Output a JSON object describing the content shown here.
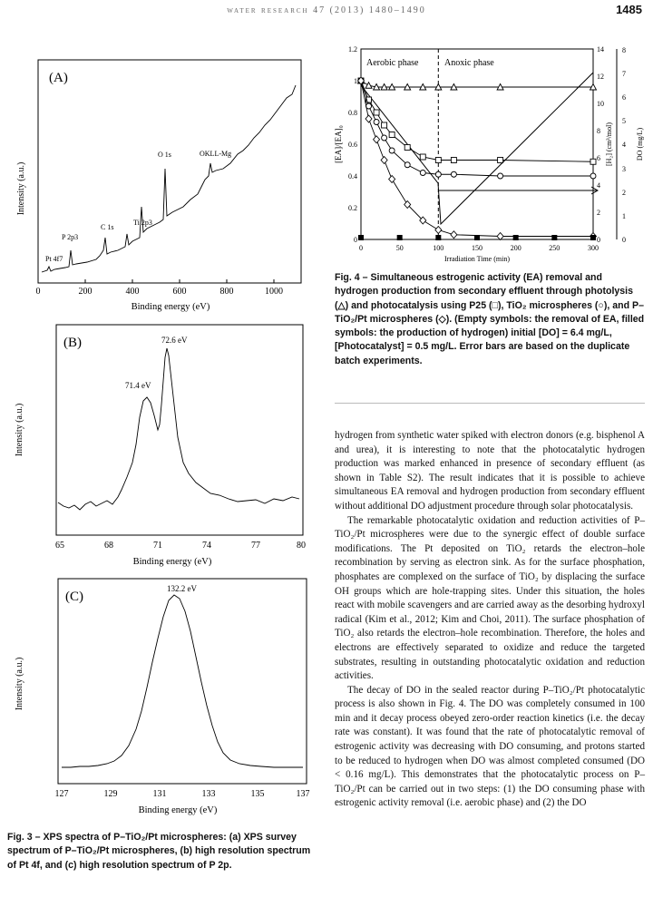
{
  "header": {
    "journal": "water research 47 (2013) 1480–1490",
    "page": "1485"
  },
  "figure3": {
    "panelA": {
      "label": "(A)",
      "xlabel": "Binding energy (eV)",
      "ylabel": "Intensity (a.u.)",
      "ticks": [
        "0",
        "200",
        "400",
        "600",
        "800",
        "1000"
      ],
      "peaks": [
        "Pt 4f7",
        "P 2p3",
        "C 1s",
        "Ti 2p3",
        "O 1s",
        "OKLL-Mg"
      ]
    },
    "panelB": {
      "label": "(B)",
      "xlabel": "Binding energy (eV)",
      "ylabel": "Intensity (a.u.)",
      "ticks": [
        "65",
        "68",
        "71",
        "74",
        "77",
        "80"
      ],
      "peak1": "71.4 eV",
      "peak2": "72.6 eV"
    },
    "panelC": {
      "label": "(C)",
      "xlabel": "Binding energy (eV)",
      "ylabel": "Intensity (a.u.)",
      "ticks": [
        "127",
        "129",
        "131",
        "133",
        "135",
        "137"
      ],
      "peak": "132.2 eV"
    },
    "caption": "Fig. 3 – XPS spectra of P–TiO₂/Pt microspheres: (a) XPS survey spectrum of P–TiO₂/Pt microspheres, (b) high resolution spectrum of Pt 4f, and (c) high resolution spectrum of P 2p."
  },
  "figure4": {
    "aerobic": "Aerobic phase",
    "anoxic": "Anoxic phase",
    "xlabel": "Irradiation Time (min)",
    "ylabel_left": "[EA]/[EA]₀",
    "ylabel_mid": "[H₂] (cm³/mol)",
    "ylabel_right": "DO (mg/L)",
    "xticks": [
      "0",
      "50",
      "100",
      "150",
      "200",
      "250",
      "300"
    ],
    "yticks_left": [
      "0",
      "0.2",
      "0.4",
      "0.6",
      "0.8",
      "1",
      "1.2"
    ],
    "yticks_mid": [
      "0",
      "2",
      "4",
      "6",
      "8",
      "10",
      "12",
      "14"
    ],
    "yticks_right": [
      "0",
      "1",
      "2",
      "3",
      "4",
      "5",
      "6",
      "7",
      "8"
    ],
    "caption": "Fig. 4 – Simultaneous estrogenic activity (EA) removal and hydrogen production from secondary effluent through photolysis (△) and photocatalysis using P25 (□), TiO₂ microspheres (○), and P–TiO₂/Pt microspheres (◇). (Empty symbols: the removal of EA, filled symbols: the production of hydrogen) initial [DO] = 6.4 mg/L, [Photocatalyst] = 0.5 mg/L. Error bars are based on the duplicate batch experiments."
  },
  "chart_data": [
    {
      "type": "line",
      "title": "",
      "xlabel": "Irradiation Time (min)",
      "ylabel": "[EA]/[EA]₀",
      "xlim": [
        0,
        300
      ],
      "ylim": [
        0,
        1.2
      ],
      "x": [
        0,
        10,
        20,
        30,
        40,
        60,
        80,
        100,
        120,
        180,
        300
      ],
      "series": [
        {
          "name": "photolysis (△)",
          "values": [
            1.0,
            0.97,
            0.96,
            0.96,
            0.96,
            0.96,
            0.96,
            0.96,
            0.96,
            0.96,
            0.96
          ]
        },
        {
          "name": "P25 (□)",
          "values": [
            1.0,
            0.88,
            0.8,
            0.72,
            0.66,
            0.58,
            0.52,
            0.5,
            0.5,
            0.5,
            0.49
          ]
        },
        {
          "name": "TiO₂ microspheres (○)",
          "values": [
            1.0,
            0.84,
            0.74,
            0.64,
            0.56,
            0.47,
            0.42,
            0.41,
            0.41,
            0.4,
            0.4
          ]
        },
        {
          "name": "P–TiO₂/Pt microspheres (◇)",
          "values": [
            1.0,
            0.76,
            0.63,
            0.5,
            0.38,
            0.22,
            0.12,
            0.06,
            0.03,
            0.02,
            0.02
          ]
        }
      ]
    }
  ],
  "body": {
    "p1": "hydrogen from synthetic water spiked with electron donors (e.g. bisphenol A and urea), it is interesting to note that the photocatalytic hydrogen production was marked enhanced in presence of secondary effluent (as shown in Table S2). The result indicates that it is possible to achieve simultaneous EA removal and hydrogen production from secondary effluent without additional DO adjustment procedure through solar photocatalysis.",
    "p2": "The remarkable photocatalytic oxidation and reduction activities of P–TiO₂/Pt microspheres were due to the synergic effect of double surface modifications. The Pt deposited on TiO₂ retards the electron–hole recombination by serving as electron sink. As for the surface phosphation, phosphates are complexed on the surface of TiO₂ by displacing the surface OH groups which are hole-trapping sites. Under this situation, the holes react with mobile scavengers and are carried away as the desorbing hydroxyl radical (Kim et al., 2012; Kim and Choi, 2011). The surface phosphation of TiO₂ also retards the electron–hole recombination. Therefore, the holes and electrons are effectively separated to oxidize and reduce the targeted substrates, resulting in outstanding photocatalytic oxidation and reduction activities.",
    "p3": "The decay of DO in the sealed reactor during P–TiO₂/Pt photocatalytic process is also shown in Fig. 4. The DO was completely consumed in 100 min and it decay process obeyed zero-order reaction kinetics (i.e. the decay rate was constant). It was found that the rate of photocatalytic removal of estrogenic activity was decreasing with DO consuming, and protons started to be reduced to hydrogen when DO was almost completed consumed (DO < 0.16 mg/L). This demonstrates that the photocatalytic process on P–TiO₂/Pt can be carried out in two steps: (1) the DO consuming phase with estrogenic activity removal (i.e. aerobic phase) and (2) the DO"
  }
}
